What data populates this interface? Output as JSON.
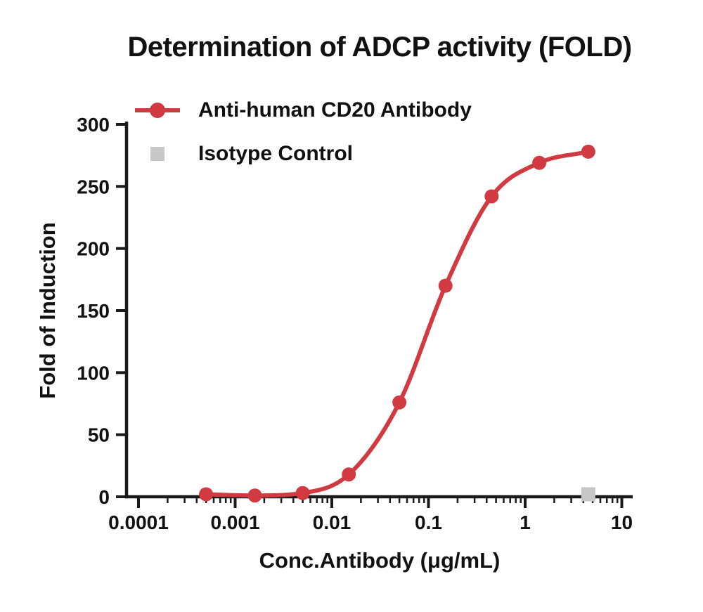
{
  "chart_data": {
    "type": "line",
    "title": "Determination of ADCP activity (FOLD)",
    "xlabel": "Conc.Antibody (μg/mL)",
    "ylabel": "Fold of Induction",
    "x_scale": "log",
    "xlim": [
      0.0001,
      10
    ],
    "ylim": [
      0,
      300
    ],
    "xtick_values": [
      0.0001,
      0.001,
      0.01,
      0.1,
      1,
      10
    ],
    "xtick_labels": [
      "0.0001",
      "0.001",
      "0.01",
      "0.1",
      "1",
      "10"
    ],
    "ytick_values": [
      0,
      50,
      100,
      150,
      200,
      250,
      300
    ],
    "grid": false,
    "legend_position": "top-left",
    "series": [
      {
        "name": "Anti-human CD20 Antibody",
        "color": "#d13a40",
        "marker": "circle",
        "line": true,
        "x": [
          0.0005,
          0.0016,
          0.005,
          0.015,
          0.05,
          0.15,
          0.45,
          1.4,
          4.5
        ],
        "y": [
          2,
          1,
          3,
          18,
          76,
          170,
          242,
          269,
          278
        ]
      },
      {
        "name": "Isotype Control",
        "color": "#c7c7c7",
        "marker": "square",
        "line": false,
        "x": [
          4.5
        ],
        "y": [
          2
        ]
      }
    ]
  },
  "colors": {
    "axis": "#1a1a1a",
    "text": "#111111",
    "antibody_red": "#d13a40",
    "isotype_gray": "#c7c7c7"
  }
}
